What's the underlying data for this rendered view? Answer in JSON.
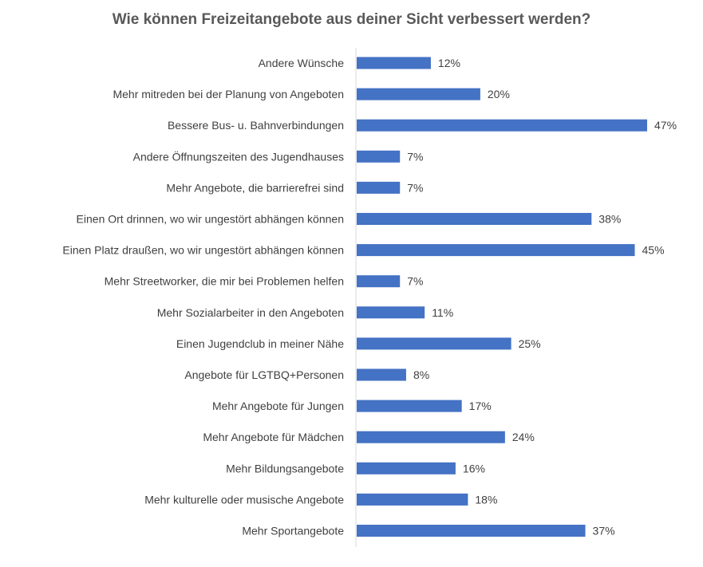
{
  "chart_data": {
    "type": "bar",
    "orientation": "horizontal",
    "title": "Wie können Freizeitangebote aus deiner Sicht verbessert werden?",
    "xlabel": "",
    "ylabel": "",
    "categories": [
      "Andere Wünsche",
      "Mehr mitreden bei der Planung von Angeboten",
      "Bessere Bus- u. Bahnverbindungen",
      "Andere Öffnungszeiten des Jugendhauses",
      "Mehr Angebote, die barrierefrei sind",
      "Einen Ort drinnen, wo wir ungestört abhängen können",
      "Einen Platz draußen, wo wir ungestört abhängen können",
      "Mehr Streetworker, die mir bei Problemen helfen",
      "Mehr Sozialarbeiter in den Angeboten",
      "Einen Jugendclub in meiner Nähe",
      "Angebote für LGTBQ+Personen",
      "Mehr Angebote für Jungen",
      "Mehr Angebote für Mädchen",
      "Mehr Bildungsangebote",
      "Mehr kulturelle oder musische Angebote",
      "Mehr Sportangebote"
    ],
    "values": [
      12,
      20,
      47,
      7,
      7,
      38,
      45,
      7,
      11,
      25,
      8,
      17,
      24,
      16,
      18,
      37
    ],
    "value_labels": [
      "12%",
      "20%",
      "47%",
      "7%",
      "7%",
      "38%",
      "45%",
      "7%",
      "11%",
      "25%",
      "8%",
      "17%",
      "24%",
      "16%",
      "18%",
      "37%"
    ],
    "unit": "%",
    "xlim": [
      0,
      50
    ],
    "grid": false,
    "legend": "none",
    "bar_color": "#4472C4"
  }
}
